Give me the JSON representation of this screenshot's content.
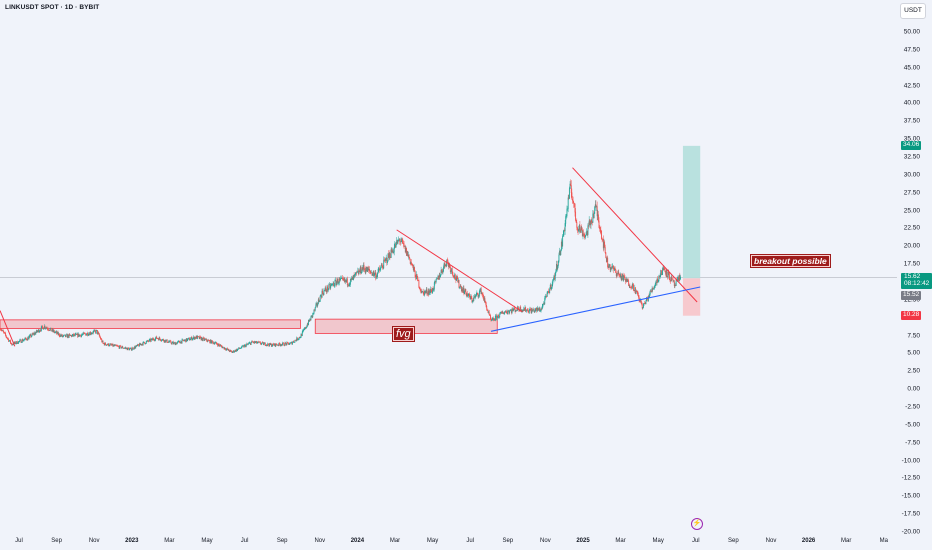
{
  "header": {
    "symbol_title": "LINKUSDT SPOT · 1D · BYBIT",
    "currency_button": "USDT"
  },
  "annotations": {
    "fvg": "fvg",
    "breakout": "breakout possible"
  },
  "price_badges": {
    "target": "34.06",
    "last_price": "15.62",
    "countdown": "08:12:42",
    "entry": "15.52",
    "stop": "10.28"
  },
  "colors": {
    "background": "#f0f3fa",
    "candle_up": "#26a69a",
    "candle_down": "#ef5350",
    "trendline_red": "#f23645",
    "trendline_blue": "#2962ff",
    "fvg_fill": "#f2b8be",
    "profit_zone": "#b2dfdb",
    "loss_zone": "#f7c4c9",
    "badge_green": "#089981",
    "badge_gray": "#787b86",
    "badge_red": "#f23645"
  },
  "icons": {
    "events": "lightning-icon"
  },
  "chart_data": {
    "type": "candlestick",
    "symbol": "LINKUSDT",
    "exchange": "BYBIT",
    "interval": "1D",
    "y_axis": {
      "ticks": [
        "50.00",
        "47.50",
        "45.00",
        "42.50",
        "40.00",
        "37.50",
        "35.00",
        "32.50",
        "30.00",
        "27.50",
        "25.00",
        "22.50",
        "20.00",
        "17.50",
        "15.00",
        "12.50",
        "10.00",
        "7.50",
        "5.00",
        "2.50",
        "0.00",
        "-2.50",
        "-5.00",
        "-7.50",
        "-10.00",
        "-12.50",
        "-15.00",
        "-17.50",
        "-20.00"
      ],
      "range": [
        -20,
        50
      ]
    },
    "x_axis": {
      "ticks": [
        {
          "label": "Jul",
          "year": false
        },
        {
          "label": "Sep",
          "year": false
        },
        {
          "label": "Nov",
          "year": false
        },
        {
          "label": "2023",
          "year": true
        },
        {
          "label": "Mar",
          "year": false
        },
        {
          "label": "May",
          "year": false
        },
        {
          "label": "Jul",
          "year": false
        },
        {
          "label": "Sep",
          "year": false
        },
        {
          "label": "Nov",
          "year": false
        },
        {
          "label": "2024",
          "year": true
        },
        {
          "label": "Mar",
          "year": false
        },
        {
          "label": "May",
          "year": false
        },
        {
          "label": "Jul",
          "year": false
        },
        {
          "label": "Sep",
          "year": false
        },
        {
          "label": "Nov",
          "year": false
        },
        {
          "label": "2025",
          "year": true
        },
        {
          "label": "Mar",
          "year": false
        },
        {
          "label": "May",
          "year": false
        },
        {
          "label": "Jul",
          "year": false
        },
        {
          "label": "Sep",
          "year": false
        },
        {
          "label": "Nov",
          "year": false
        },
        {
          "label": "2026",
          "year": true
        },
        {
          "label": "Mar",
          "year": false
        },
        {
          "label": "Ma",
          "year": false
        }
      ],
      "start": "2022-06-01",
      "end": "2026-05-25"
    },
    "price_path": [
      [
        "2022-06-01",
        8.6
      ],
      [
        "2022-06-20",
        6.3
      ],
      [
        "2022-07-15",
        7.1
      ],
      [
        "2022-08-12",
        8.8
      ],
      [
        "2022-09-10",
        7.4
      ],
      [
        "2022-10-10",
        7.6
      ],
      [
        "2022-11-05",
        8.1
      ],
      [
        "2022-11-15",
        6.4
      ],
      [
        "2022-12-30",
        5.6
      ],
      [
        "2023-01-15",
        6.3
      ],
      [
        "2023-02-10",
        7.2
      ],
      [
        "2023-03-10",
        6.4
      ],
      [
        "2023-04-15",
        7.3
      ],
      [
        "2023-05-15",
        6.5
      ],
      [
        "2023-06-12",
        5.2
      ],
      [
        "2023-07-15",
        6.6
      ],
      [
        "2023-08-15",
        6.2
      ],
      [
        "2023-09-15",
        6.4
      ],
      [
        "2023-10-01",
        7.4
      ],
      [
        "2023-10-20",
        10.3
      ],
      [
        "2023-11-05",
        13.5
      ],
      [
        "2023-12-01",
        15.2
      ],
      [
        "2023-12-20",
        15.0
      ],
      [
        "2024-01-10",
        17.0
      ],
      [
        "2024-02-01",
        16.0
      ],
      [
        "2024-03-10",
        21.0
      ],
      [
        "2024-03-25",
        18.5
      ],
      [
        "2024-04-15",
        13.5
      ],
      [
        "2024-05-01",
        13.8
      ],
      [
        "2024-05-25",
        18.0
      ],
      [
        "2024-06-15",
        14.5
      ],
      [
        "2024-07-05",
        12.5
      ],
      [
        "2024-07-20",
        13.8
      ],
      [
        "2024-08-05",
        9.5
      ],
      [
        "2024-08-25",
        10.8
      ],
      [
        "2024-09-20",
        11.3
      ],
      [
        "2024-10-10",
        11.0
      ],
      [
        "2024-10-25",
        11.2
      ],
      [
        "2024-11-15",
        15.5
      ],
      [
        "2024-11-28",
        20.5
      ],
      [
        "2024-12-12",
        28.5
      ],
      [
        "2024-12-22",
        23.0
      ],
      [
        "2025-01-05",
        21.5
      ],
      [
        "2025-01-22",
        25.5
      ],
      [
        "2025-02-10",
        17.5
      ],
      [
        "2025-03-01",
        16.0
      ],
      [
        "2025-03-25",
        14.2
      ],
      [
        "2025-04-08",
        11.5
      ],
      [
        "2025-04-25",
        14.3
      ],
      [
        "2025-05-12",
        17.0
      ],
      [
        "2025-05-30",
        14.5
      ],
      [
        "2025-06-08",
        15.8
      ]
    ],
    "drawings": {
      "fvg_zones": [
        {
          "x0": "2022-06-01",
          "x1": "2023-10-01",
          "y0": 8.5,
          "y1": 9.7
        },
        {
          "x0": "2023-10-25",
          "x1": "2024-08-15",
          "y0": 7.8,
          "y1": 9.8
        }
      ],
      "red_trendlines": [
        [
          [
            "2022-06-01",
            11.0
          ],
          [
            "2022-06-25",
            6.0
          ]
        ],
        [
          [
            "2024-03-05",
            22.3
          ],
          [
            "2024-09-25",
            10.8
          ]
        ],
        [
          [
            "2024-12-15",
            31.0
          ],
          [
            "2025-07-05",
            12.2
          ]
        ]
      ],
      "blue_trendline": [
        [
          "2024-08-05",
          8.1
        ],
        [
          "2025-07-10",
          14.3
        ]
      ],
      "long_position": {
        "x0": "2025-06-12",
        "x1": "2025-07-10",
        "entry": 15.52,
        "target": 34.06,
        "stop": 10.28
      }
    }
  }
}
